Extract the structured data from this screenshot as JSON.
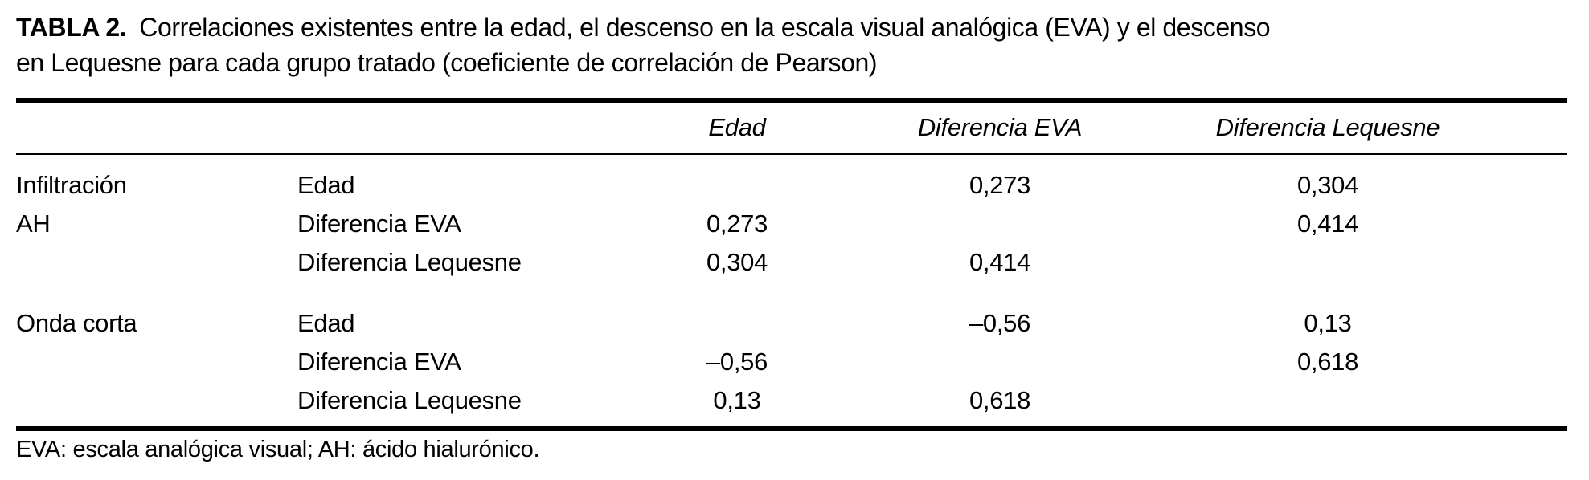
{
  "caption": {
    "label": "TABLA 2.",
    "line1": "Correlaciones existentes entre la edad, el descenso en la escala visual analógica (EVA) y el descenso",
    "line2": "en Lequesne para cada grupo tratado (coeficiente de correlación de Pearson)"
  },
  "table": {
    "headers": {
      "edad": "Edad",
      "eva": "Diferencia EVA",
      "lequesne": "Diferencia Lequesne"
    },
    "groups": [
      {
        "rows": [
          {
            "group": "Infiltración",
            "variable": "Edad",
            "edad": "",
            "eva": "0,273",
            "lequesne": "0,304"
          },
          {
            "group": "AH",
            "variable": "Diferencia EVA",
            "edad": "0,273",
            "eva": "",
            "lequesne": "0,414"
          },
          {
            "group": "",
            "variable": "Diferencia Lequesne",
            "edad": "0,304",
            "eva": "0,414",
            "lequesne": ""
          }
        ]
      },
      {
        "rows": [
          {
            "group": "Onda corta",
            "variable": "Edad",
            "edad": "",
            "eva": "–0,56",
            "lequesne": "0,13"
          },
          {
            "group": "",
            "variable": "Diferencia EVA",
            "edad": "–0,56",
            "eva": "",
            "lequesne": "0,618"
          },
          {
            "group": "",
            "variable": "Diferencia Lequesne",
            "edad": "0,13",
            "eva": "0,618",
            "lequesne": ""
          }
        ]
      }
    ],
    "footnote": "EVA: escala analógica visual; AH: ácido hialurónico."
  },
  "colors": {
    "text": "#000000",
    "background": "#ffffff",
    "rule": "#000000"
  }
}
